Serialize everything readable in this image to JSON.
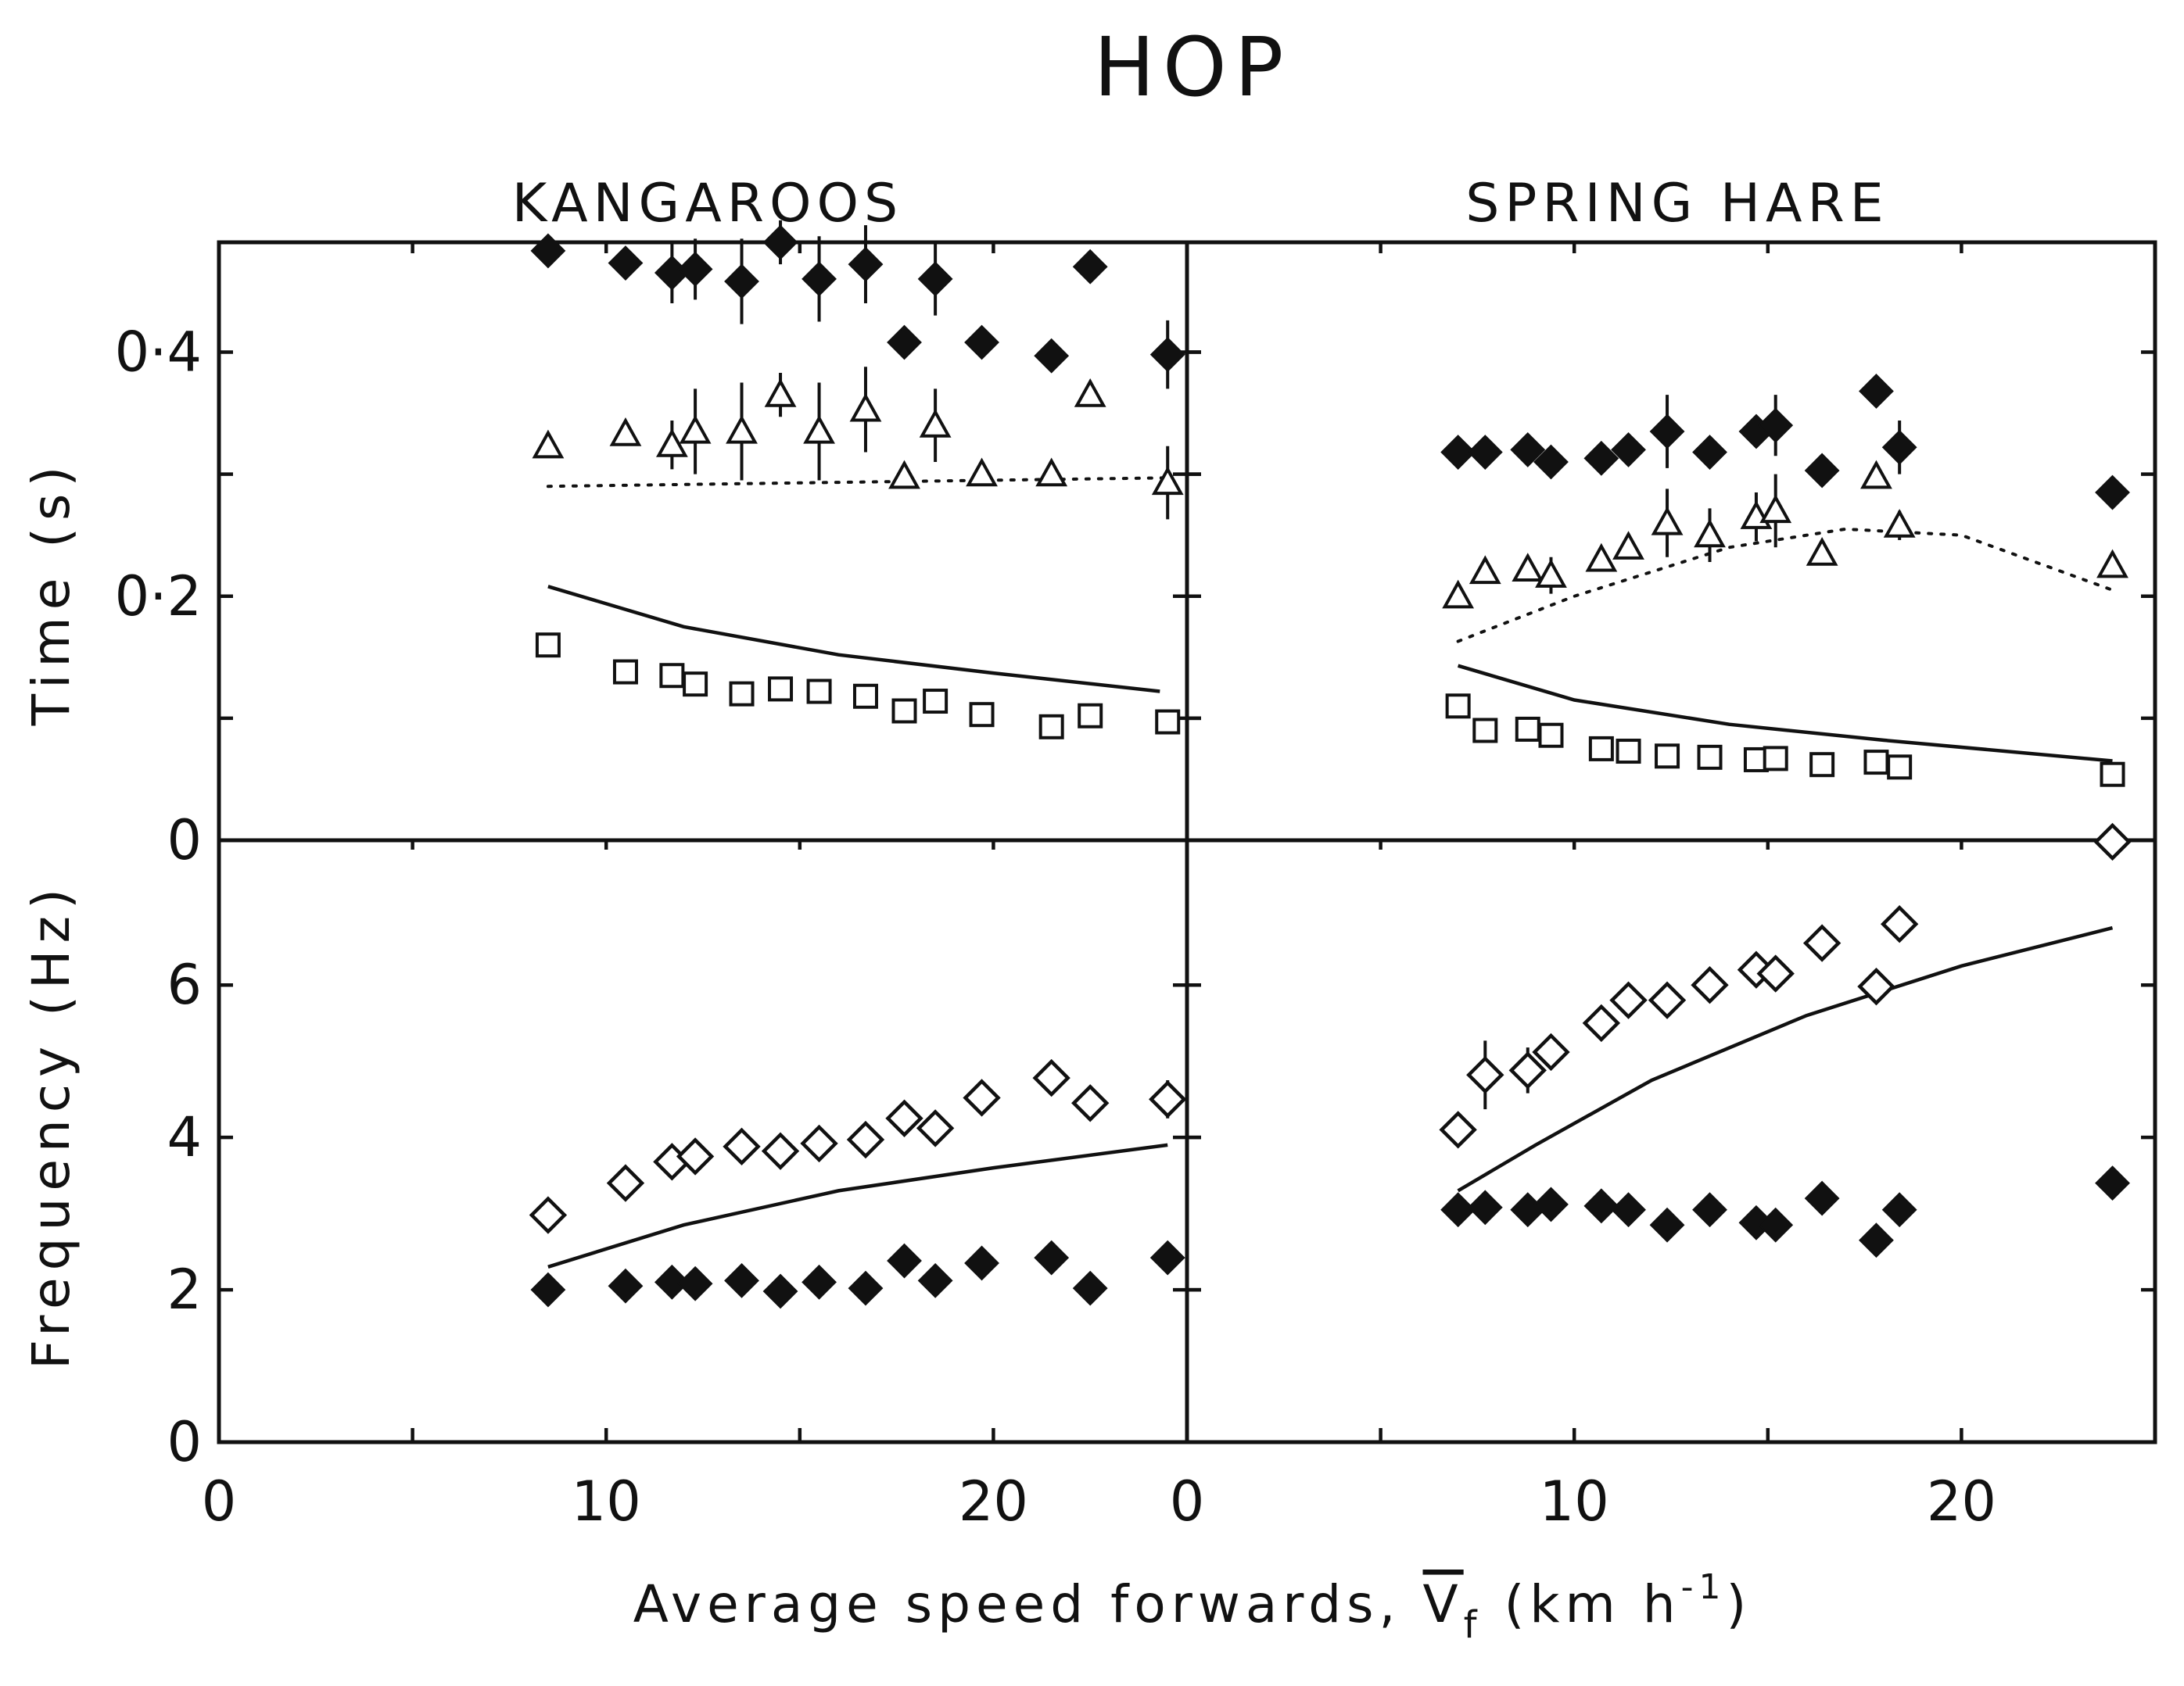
{
  "figure": {
    "title": "HOP",
    "xlabel": "Average speed forwards, V̄f (km h⁻¹)",
    "xlabel_parts": {
      "main": "Average speed forwards, ",
      "sym": "V",
      "sub": "f",
      "unit_open": "(km h",
      "unit_exp": "-1",
      "unit_close": ")"
    },
    "ylabel_top": "Time (s)",
    "ylabel_bottom": "Frequency (Hz)"
  },
  "chart_data": [
    {
      "type": "scatter",
      "panel": "top-left",
      "title": "KANGAROOS",
      "xlim": [
        0,
        25
      ],
      "ylim": [
        0,
        0.49
      ],
      "x_ticks": [
        "0",
        "10",
        "20"
      ],
      "y_ticks": [
        "0",
        "0·2",
        "0·4"
      ],
      "series": [
        {
          "marker": "filled-diamond",
          "points": [
            [
              8.5,
              0.483,
              null
            ],
            [
              10.5,
              0.473,
              null
            ],
            [
              11.7,
              0.465,
              0.025
            ],
            [
              12.3,
              0.468,
              0.025
            ],
            [
              13.5,
              0.458,
              0.035
            ],
            [
              14.5,
              0.49,
              0.018
            ],
            [
              15.5,
              0.46,
              0.035
            ],
            [
              16.7,
              0.472,
              0.032
            ],
            [
              17.7,
              0.408,
              null
            ],
            [
              18.5,
              0.46,
              0.03
            ],
            [
              19.7,
              0.408,
              null
            ],
            [
              21.5,
              0.397,
              null
            ],
            [
              22.5,
              0.47,
              null
            ],
            [
              24.5,
              0.398,
              0.028
            ]
          ]
        },
        {
          "marker": "open-triangle",
          "points": [
            [
              8.5,
              0.323,
              null
            ],
            [
              10.5,
              0.333,
              null
            ],
            [
              11.7,
              0.324,
              0.02
            ],
            [
              12.3,
              0.335,
              0.035
            ],
            [
              13.5,
              0.335,
              0.04
            ],
            [
              14.5,
              0.365,
              0.018
            ],
            [
              15.5,
              0.335,
              0.04
            ],
            [
              16.7,
              0.353,
              0.035
            ],
            [
              17.7,
              0.298,
              null
            ],
            [
              18.5,
              0.34,
              0.03
            ],
            [
              19.7,
              0.3,
              null
            ],
            [
              21.5,
              0.3,
              null
            ],
            [
              22.5,
              0.365,
              null
            ],
            [
              24.5,
              0.293,
              0.03
            ]
          ]
        },
        {
          "marker": "open-square",
          "points": [
            [
              8.5,
              0.16
            ],
            [
              10.5,
              0.138
            ],
            [
              11.7,
              0.135
            ],
            [
              12.3,
              0.128
            ],
            [
              13.5,
              0.12
            ],
            [
              14.5,
              0.124
            ],
            [
              15.5,
              0.122
            ],
            [
              16.7,
              0.118
            ],
            [
              17.7,
              0.106
            ],
            [
              18.5,
              0.114
            ],
            [
              19.7,
              0.103
            ],
            [
              21.5,
              0.093
            ],
            [
              22.5,
              0.102
            ],
            [
              24.5,
              0.097
            ]
          ]
        }
      ],
      "fits": [
        {
          "style": "solid",
          "points": [
            [
              8.5,
              0.208
            ],
            [
              12,
              0.175
            ],
            [
              16,
              0.152
            ],
            [
              20,
              0.137
            ],
            [
              24.3,
              0.122
            ]
          ]
        },
        {
          "style": "dotted",
          "points": [
            [
              8.5,
              0.29
            ],
            [
              24.5,
              0.297
            ]
          ]
        }
      ]
    },
    {
      "type": "scatter",
      "panel": "top-right",
      "title": "SPRING HARE",
      "xlim": [
        0,
        25
      ],
      "ylim": [
        0,
        0.49
      ],
      "x_ticks": [
        "0",
        "10",
        "20"
      ],
      "series": [
        {
          "marker": "filled-diamond",
          "points": [
            [
              7,
              0.318,
              null
            ],
            [
              7.7,
              0.318,
              null
            ],
            [
              8.8,
              0.32,
              null
            ],
            [
              9.4,
              0.31,
              null
            ],
            [
              10.7,
              0.313,
              null
            ],
            [
              11.4,
              0.32,
              null
            ],
            [
              12.4,
              0.335,
              0.03
            ],
            [
              13.5,
              0.318,
              null
            ],
            [
              14.7,
              0.335,
              null
            ],
            [
              15.2,
              0.34,
              0.025
            ],
            [
              16.4,
              0.303,
              null
            ],
            [
              17.8,
              0.368,
              null
            ],
            [
              18.4,
              0.322,
              0.022
            ],
            [
              23.9,
              0.285,
              null
            ]
          ]
        },
        {
          "marker": "open-triangle",
          "points": [
            [
              7,
              0.2,
              null
            ],
            [
              7.7,
              0.22,
              null
            ],
            [
              8.8,
              0.222,
              null
            ],
            [
              9.4,
              0.217,
              0.015
            ],
            [
              10.7,
              0.23,
              null
            ],
            [
              11.4,
              0.24,
              null
            ],
            [
              12.4,
              0.26,
              0.028
            ],
            [
              13.5,
              0.25,
              0.022
            ],
            [
              14.7,
              0.265,
              0.02
            ],
            [
              15.2,
              0.27,
              0.03
            ],
            [
              16.4,
              0.235,
              null
            ],
            [
              17.8,
              0.298,
              null
            ],
            [
              18.4,
              0.258,
              0.012
            ],
            [
              23.9,
              0.225,
              null
            ]
          ]
        },
        {
          "marker": "open-square",
          "points": [
            [
              7,
              0.11
            ],
            [
              7.7,
              0.09
            ],
            [
              8.8,
              0.091
            ],
            [
              9.4,
              0.086
            ],
            [
              10.7,
              0.075
            ],
            [
              11.4,
              0.073
            ],
            [
              12.4,
              0.069
            ],
            [
              13.5,
              0.068
            ],
            [
              14.7,
              0.066
            ],
            [
              15.2,
              0.067
            ],
            [
              16.4,
              0.062
            ],
            [
              17.8,
              0.064
            ],
            [
              18.4,
              0.06
            ],
            [
              23.9,
              0.054
            ]
          ]
        }
      ],
      "fits": [
        {
          "style": "solid",
          "points": [
            [
              7,
              0.143
            ],
            [
              10,
              0.115
            ],
            [
              14,
              0.095
            ],
            [
              18,
              0.082
            ],
            [
              23.9,
              0.065
            ]
          ]
        },
        {
          "style": "dotted",
          "points": [
            [
              7,
              0.163
            ],
            [
              10,
              0.2
            ],
            [
              14,
              0.24
            ],
            [
              17,
              0.255
            ],
            [
              20,
              0.25
            ],
            [
              23.9,
              0.205
            ]
          ]
        }
      ]
    },
    {
      "type": "scatter",
      "panel": "bottom-left",
      "xlim": [
        0,
        25
      ],
      "ylim": [
        0,
        7.9
      ],
      "x_ticks": [
        "0",
        "10",
        "20"
      ],
      "y_ticks": [
        "0",
        "2",
        "4",
        "6"
      ],
      "series": [
        {
          "marker": "open-diamond",
          "points": [
            [
              8.5,
              2.98,
              null
            ],
            [
              10.5,
              3.4,
              null
            ],
            [
              11.7,
              3.68,
              null
            ],
            [
              12.3,
              3.75,
              null
            ],
            [
              13.5,
              3.88,
              null
            ],
            [
              14.5,
              3.82,
              null
            ],
            [
              15.5,
              3.92,
              null
            ],
            [
              16.7,
              3.97,
              null
            ],
            [
              17.7,
              4.25,
              null
            ],
            [
              18.5,
              4.12,
              null
            ],
            [
              19.7,
              4.52,
              0.22
            ],
            [
              21.5,
              4.78,
              null
            ],
            [
              22.5,
              4.45,
              null
            ],
            [
              24.5,
              4.5,
              0.25
            ]
          ]
        },
        {
          "marker": "filled-diamond",
          "points": [
            [
              8.5,
              2.0
            ],
            [
              10.5,
              2.05
            ],
            [
              11.7,
              2.1
            ],
            [
              12.3,
              2.08
            ],
            [
              13.5,
              2.12
            ],
            [
              14.5,
              1.98
            ],
            [
              15.5,
              2.1
            ],
            [
              16.7,
              2.02
            ],
            [
              17.7,
              2.38
            ],
            [
              18.5,
              2.12
            ],
            [
              19.7,
              2.35
            ],
            [
              21.5,
              2.42
            ],
            [
              22.5,
              2.02
            ],
            [
              24.5,
              2.42
            ]
          ]
        }
      ],
      "fits": [
        {
          "style": "solid",
          "points": [
            [
              8.5,
              2.3
            ],
            [
              12,
              2.85
            ],
            [
              16,
              3.3
            ],
            [
              20,
              3.6
            ],
            [
              24.5,
              3.9
            ]
          ]
        }
      ]
    },
    {
      "type": "scatter",
      "panel": "bottom-right",
      "xlim": [
        0,
        25
      ],
      "ylim": [
        0,
        7.9
      ],
      "x_ticks": [
        "0",
        "10",
        "20"
      ],
      "series": [
        {
          "marker": "open-diamond",
          "points": [
            [
              7,
              4.1,
              null
            ],
            [
              7.7,
              4.82,
              0.45
            ],
            [
              8.8,
              4.88,
              0.3
            ],
            [
              9.4,
              5.12,
              null
            ],
            [
              10.7,
              5.5,
              null
            ],
            [
              11.4,
              5.8,
              null
            ],
            [
              12.4,
              5.8,
              null
            ],
            [
              13.5,
              6.0,
              null
            ],
            [
              14.7,
              6.2,
              null
            ],
            [
              15.2,
              6.15,
              null
            ],
            [
              16.4,
              6.55,
              null
            ],
            [
              17.8,
              5.98,
              null
            ],
            [
              18.4,
              6.8,
              null
            ],
            [
              23.9,
              7.88,
              null
            ]
          ]
        },
        {
          "marker": "filled-diamond",
          "points": [
            [
              7,
              3.05
            ],
            [
              7.7,
              3.08
            ],
            [
              8.8,
              3.05
            ],
            [
              9.4,
              3.12
            ],
            [
              10.7,
              3.1
            ],
            [
              11.4,
              3.05
            ],
            [
              12.4,
              2.85
            ],
            [
              13.5,
              3.05
            ],
            [
              14.7,
              2.88
            ],
            [
              15.2,
              2.85
            ],
            [
              16.4,
              3.2
            ],
            [
              17.8,
              2.65
            ],
            [
              18.4,
              3.05
            ],
            [
              23.9,
              3.4
            ]
          ]
        }
      ],
      "fits": [
        {
          "style": "solid",
          "points": [
            [
              7,
              3.3
            ],
            [
              9,
              3.9
            ],
            [
              12,
              4.75
            ],
            [
              16,
              5.6
            ],
            [
              20,
              6.25
            ],
            [
              23.9,
              6.75
            ]
          ]
        }
      ]
    }
  ]
}
